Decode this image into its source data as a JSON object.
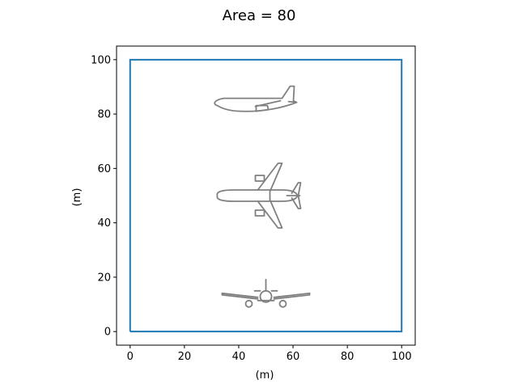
{
  "chart_data": {
    "type": "diagram",
    "title": "Area = 80",
    "xlabel": "(m)",
    "ylabel": "(m)",
    "xlim": [
      -5,
      105
    ],
    "ylim": [
      -5,
      105
    ],
    "xticks": [
      0,
      20,
      40,
      60,
      80,
      100
    ],
    "yticks": [
      0,
      20,
      40,
      60,
      80,
      100
    ],
    "grid": false,
    "boundary": {
      "x": [
        0,
        100,
        100,
        0,
        0
      ],
      "y": [
        0,
        0,
        100,
        100,
        0
      ],
      "color": "#1f77b4"
    },
    "aircraft_views": [
      {
        "view": "side",
        "center": [
          50,
          84
        ]
      },
      {
        "view": "top",
        "center": [
          50,
          50
        ]
      },
      {
        "view": "front",
        "center": [
          50,
          12
        ]
      }
    ],
    "drawing_color": "#808080"
  }
}
